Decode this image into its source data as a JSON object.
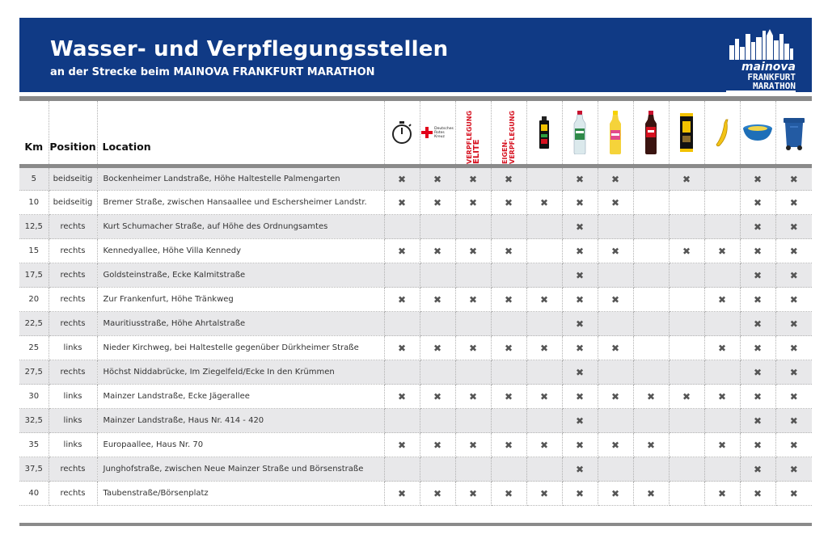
{
  "header": {
    "title": "Wasser- und Verpflegungsstellen",
    "subtitle": "an der Strecke beim MAINOVA FRANKFURT MARATHON",
    "logo_brand": "mainova",
    "logo_event_line1": "FRANKFURT",
    "logo_event_line2": "MARATHON"
  },
  "colors": {
    "header_bg": "#103a85",
    "separator": "#8a8a8a",
    "row_alt": "#e8e8ea",
    "red_text": "#d6101f"
  },
  "columns": {
    "km": "Km",
    "position": "Position",
    "location": "Location",
    "services": [
      {
        "icon": "stopwatch-icon"
      },
      {
        "icon": "red-cross-icon",
        "text_lines": [
          "Deutsches",
          "Rotes",
          "Kreuz"
        ]
      },
      {
        "icon": "vertical-text",
        "text_lines": [
          "VERPFLEGUNG",
          "ELITE"
        ]
      },
      {
        "icon": "vertical-text",
        "text_lines": [
          "EIGEN-",
          "VERPFLEGUNG"
        ]
      },
      {
        "icon": "energy-gel-icon"
      },
      {
        "icon": "water-bottle-icon"
      },
      {
        "icon": "iso-drink-bottle-icon"
      },
      {
        "icon": "cola-bottle-icon"
      },
      {
        "icon": "energy-bar-icon"
      },
      {
        "icon": "banana-icon"
      },
      {
        "icon": "sponge-bowl-icon"
      },
      {
        "icon": "trash-bin-icon"
      }
    ]
  },
  "mark_symbol": "✖",
  "rows": [
    {
      "km": "5",
      "position": "beidseitig",
      "location": "Bockenheimer Landstraße, Höhe Haltestelle Palmengarten",
      "marks": [
        1,
        1,
        1,
        1,
        0,
        1,
        1,
        0,
        1,
        0,
        1,
        1
      ]
    },
    {
      "km": "10",
      "position": "beidseitig",
      "location": "Bremer Straße, zwischen Hansaallee und Eschersheimer Landstr.",
      "marks": [
        1,
        1,
        1,
        1,
        1,
        1,
        1,
        0,
        0,
        0,
        1,
        1
      ]
    },
    {
      "km": "12,5",
      "position": "rechts",
      "location": "Kurt Schumacher Straße, auf Höhe des Ordnungsamtes",
      "marks": [
        0,
        0,
        0,
        0,
        0,
        1,
        0,
        0,
        0,
        0,
        1,
        1
      ]
    },
    {
      "km": "15",
      "position": "rechts",
      "location": "Kennedyallee, Höhe Villa Kennedy",
      "marks": [
        1,
        1,
        1,
        1,
        0,
        1,
        1,
        0,
        1,
        1,
        1,
        1
      ]
    },
    {
      "km": "17,5",
      "position": "rechts",
      "location": "Goldsteinstraße, Ecke Kalmitstraße",
      "marks": [
        0,
        0,
        0,
        0,
        0,
        1,
        0,
        0,
        0,
        0,
        1,
        1
      ]
    },
    {
      "km": "20",
      "position": "rechts",
      "location": "Zur Frankenfurt, Höhe Tränkweg",
      "marks": [
        1,
        1,
        1,
        1,
        1,
        1,
        1,
        0,
        0,
        1,
        1,
        1
      ]
    },
    {
      "km": "22,5",
      "position": "rechts",
      "location": "Mauritiusstraße, Höhe Ahrtalstraße",
      "marks": [
        0,
        0,
        0,
        0,
        0,
        1,
        0,
        0,
        0,
        0,
        1,
        1
      ]
    },
    {
      "km": "25",
      "position": "links",
      "location": "Nieder Kirchweg, bei Haltestelle gegenüber Dürkheimer Straße",
      "marks": [
        1,
        1,
        1,
        1,
        1,
        1,
        1,
        0,
        0,
        1,
        1,
        1
      ]
    },
    {
      "km": "27,5",
      "position": "rechts",
      "location": "Höchst Niddabrücke, Im Ziegelfeld/Ecke In den Krümmen",
      "marks": [
        0,
        0,
        0,
        0,
        0,
        1,
        0,
        0,
        0,
        0,
        1,
        1
      ]
    },
    {
      "km": "30",
      "position": "links",
      "location": "Mainzer Landstraße, Ecke Jägerallee",
      "marks": [
        1,
        1,
        1,
        1,
        1,
        1,
        1,
        1,
        1,
        1,
        1,
        1
      ]
    },
    {
      "km": "32,5",
      "position": "links",
      "location": "Mainzer Landstraße, Haus Nr. 414 - 420",
      "marks": [
        0,
        0,
        0,
        0,
        0,
        1,
        0,
        0,
        0,
        0,
        1,
        1
      ]
    },
    {
      "km": "35",
      "position": "links",
      "location": "Europaallee, Haus Nr. 70",
      "marks": [
        1,
        1,
        1,
        1,
        1,
        1,
        1,
        1,
        0,
        1,
        1,
        1
      ]
    },
    {
      "km": "37,5",
      "position": "rechts",
      "location": "Junghofstraße, zwischen Neue Mainzer Straße und Börsenstraße",
      "marks": [
        0,
        0,
        0,
        0,
        0,
        1,
        0,
        0,
        0,
        0,
        1,
        1
      ]
    },
    {
      "km": "40",
      "position": "rechts",
      "location": "Taubenstraße/Börsenplatz",
      "marks": [
        1,
        1,
        1,
        1,
        1,
        1,
        1,
        1,
        0,
        1,
        1,
        1
      ]
    }
  ]
}
